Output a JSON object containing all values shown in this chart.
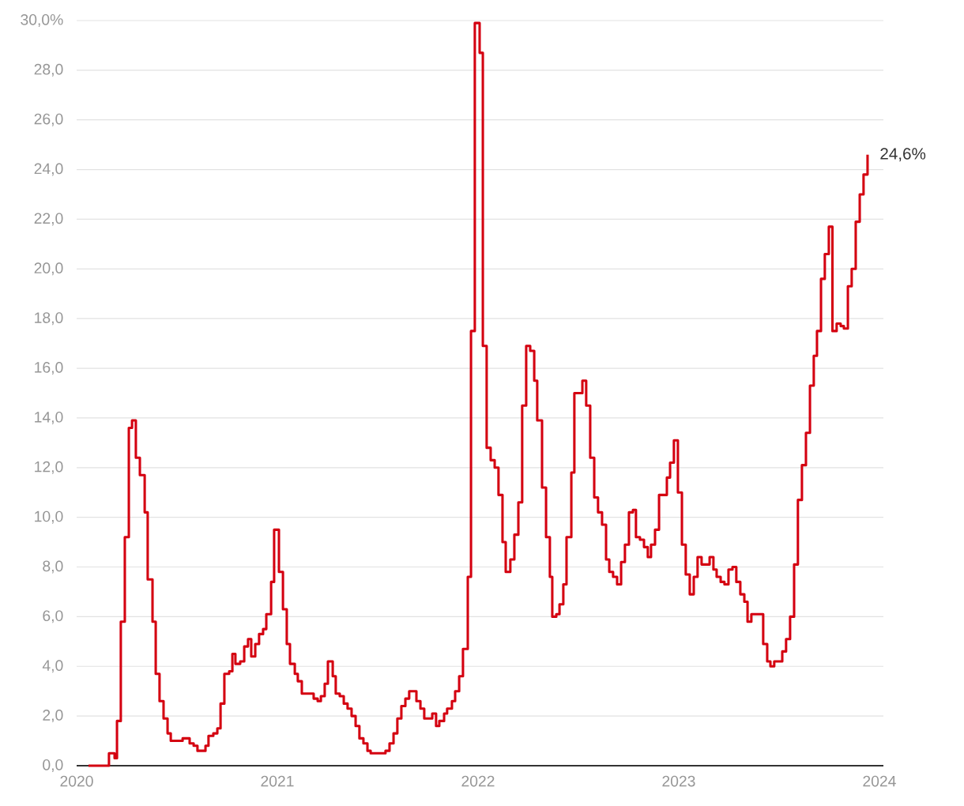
{
  "chart_data": {
    "type": "step",
    "x": [
      2020.059,
      2020.161,
      2020.189,
      2020.201,
      2020.22,
      2020.24,
      2020.26,
      2020.276,
      2020.295,
      2020.315,
      2020.339,
      2020.354,
      2020.378,
      2020.394,
      2020.413,
      2020.433,
      2020.453,
      2020.469,
      2020.528,
      2020.563,
      2020.583,
      2020.602,
      2020.642,
      2020.657,
      2020.681,
      2020.701,
      2020.717,
      2020.736,
      2020.76,
      2020.776,
      2020.791,
      2020.815,
      2020.835,
      2020.854,
      2020.87,
      2020.89,
      2020.909,
      2020.929,
      2020.945,
      2020.969,
      2020.984,
      2021.008,
      2021.028,
      2021.047,
      2021.063,
      2021.087,
      2021.102,
      2021.122,
      2021.181,
      2021.201,
      2021.217,
      2021.236,
      2021.252,
      2021.276,
      2021.291,
      2021.311,
      2021.331,
      2021.35,
      2021.37,
      2021.39,
      2021.409,
      2021.429,
      2021.449,
      2021.465,
      2021.539,
      2021.559,
      2021.579,
      2021.598,
      2021.618,
      2021.638,
      2021.657,
      2021.693,
      2021.713,
      2021.732,
      2021.772,
      2021.791,
      2021.807,
      2021.831,
      2021.846,
      2021.87,
      2021.886,
      2021.906,
      2021.925,
      2021.949,
      2021.965,
      2021.984,
      2022.008,
      2022.024,
      2022.043,
      2022.063,
      2022.083,
      2022.102,
      2022.122,
      2022.138,
      2022.161,
      2022.181,
      2022.201,
      2022.22,
      2022.24,
      2022.26,
      2022.28,
      2022.295,
      2022.319,
      2022.339,
      2022.358,
      2022.37,
      2022.39,
      2022.406,
      2022.425,
      2022.441,
      2022.465,
      2022.48,
      2022.52,
      2022.539,
      2022.559,
      2022.579,
      2022.598,
      2022.618,
      2022.638,
      2022.654,
      2022.673,
      2022.693,
      2022.713,
      2022.732,
      2022.752,
      2022.772,
      2022.787,
      2022.807,
      2022.827,
      2022.846,
      2022.862,
      2022.882,
      2022.902,
      2022.941,
      2022.957,
      2022.976,
      2022.996,
      2023.016,
      2023.035,
      2023.055,
      2023.075,
      2023.094,
      2023.114,
      2023.154,
      2023.173,
      2023.189,
      2023.209,
      2023.228,
      2023.248,
      2023.268,
      2023.287,
      2023.307,
      2023.327,
      2023.343,
      2023.362,
      2023.421,
      2023.441,
      2023.457,
      2023.476,
      2023.516,
      2023.535,
      2023.555,
      2023.575,
      2023.594,
      2023.614,
      2023.634,
      2023.654,
      2023.673,
      2023.689,
      2023.709,
      2023.728,
      2023.748,
      2023.766,
      2023.787,
      2023.807,
      2023.823,
      2023.843,
      2023.862,
      2023.882,
      2023.902,
      2023.921,
      2023.941
    ],
    "series": [
      {
        "color": "#d40010",
        "values": [
          0,
          0.5,
          0.3,
          1.8,
          5.8,
          9.2,
          13.6,
          13.9,
          12.4,
          11.7,
          10.2,
          7.5,
          5.8,
          3.7,
          2.6,
          1.9,
          1.3,
          1.0,
          1.1,
          0.9,
          0.8,
          0.6,
          0.8,
          1.2,
          1.3,
          1.5,
          2.5,
          3.7,
          3.8,
          4.5,
          4.1,
          4.2,
          4.8,
          5.1,
          4.4,
          4.9,
          5.3,
          5.5,
          6.1,
          7.4,
          9.5,
          7.8,
          6.3,
          4.9,
          4.1,
          3.7,
          3.4,
          2.9,
          2.7,
          2.6,
          2.8,
          3.3,
          4.2,
          3.6,
          2.9,
          2.8,
          2.5,
          2.3,
          2.0,
          1.6,
          1.1,
          0.9,
          0.6,
          0.5,
          0.6,
          0.9,
          1.3,
          1.9,
          2.4,
          2.7,
          3.0,
          2.6,
          2.3,
          1.9,
          2.1,
          1.6,
          1.8,
          2.1,
          2.3,
          2.6,
          3.0,
          3.6,
          4.7,
          7.6,
          17.5,
          29.9,
          28.7,
          16.9,
          12.8,
          12.3,
          12.0,
          10.9,
          9.0,
          7.8,
          8.3,
          9.3,
          10.6,
          14.5,
          16.9,
          16.7,
          15.5,
          13.9,
          11.2,
          9.2,
          7.6,
          6.0,
          6.1,
          6.5,
          7.3,
          9.2,
          11.8,
          15.0,
          15.5,
          14.5,
          12.4,
          10.8,
          10.2,
          9.7,
          8.3,
          7.8,
          7.6,
          7.3,
          8.2,
          8.9,
          10.2,
          10.3,
          9.2,
          9.1,
          8.8,
          8.4,
          8.9,
          9.5,
          10.9,
          11.6,
          12.2,
          13.1,
          11.0,
          8.9,
          7.7,
          6.9,
          7.6,
          8.4,
          8.1,
          8.4,
          7.9,
          7.6,
          7.4,
          7.3,
          7.9,
          8.0,
          7.4,
          6.9,
          6.6,
          5.8,
          6.1,
          4.9,
          4.2,
          4.0,
          4.2,
          4.6,
          5.1,
          6.0,
          8.1,
          10.7,
          12.1,
          13.4,
          15.3,
          16.5,
          17.5,
          19.6,
          20.6,
          21.7,
          17.5,
          17.8,
          17.7,
          17.6,
          19.3,
          20.0,
          21.9,
          23.0,
          23.8,
          24.6
        ]
      }
    ],
    "xlim": [
      2020,
      2024.02
    ],
    "xticks": [
      2020,
      2021,
      2022,
      2023,
      2024
    ],
    "ylim": [
      0,
      30
    ],
    "yticks": [
      {
        "value": 0,
        "label": "0,0"
      },
      {
        "value": 2,
        "label": "2,0"
      },
      {
        "value": 4,
        "label": "4,0"
      },
      {
        "value": 6,
        "label": "6,0"
      },
      {
        "value": 8,
        "label": "8,0"
      },
      {
        "value": 10,
        "label": "10,0"
      },
      {
        "value": 12,
        "label": "12,0"
      },
      {
        "value": 14,
        "label": "14,0"
      },
      {
        "value": 16,
        "label": "16,0"
      },
      {
        "value": 18,
        "label": "18,0"
      },
      {
        "value": 20,
        "label": "20,0"
      },
      {
        "value": 22,
        "label": "22,0"
      },
      {
        "value": 24,
        "label": "24,0"
      },
      {
        "value": 26,
        "label": "26,0"
      },
      {
        "value": 28,
        "label": "28,0"
      },
      {
        "value": 30,
        "label": "30,0%"
      }
    ],
    "grid": "y",
    "annotations": [
      {
        "text": "24,6%",
        "x": 2023.941,
        "y": 24.6
      }
    ]
  }
}
